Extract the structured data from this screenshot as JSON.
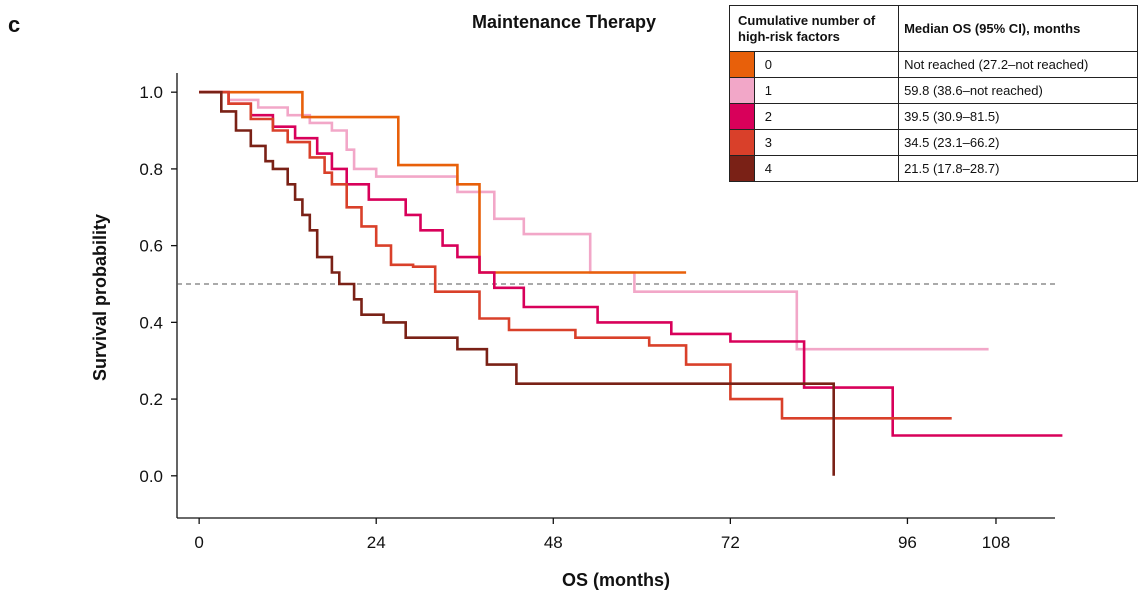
{
  "panel_label": "c",
  "chart_data": {
    "type": "line",
    "title": "Maintenance Therapy",
    "xlabel": "OS (months)",
    "ylabel": "Survival probability",
    "xlim": [
      -3,
      116
    ],
    "ylim": [
      -0.11,
      1.05
    ],
    "xticks": [
      0,
      24,
      48,
      72,
      96,
      108
    ],
    "yticks": [
      0.0,
      0.2,
      0.4,
      0.6,
      0.8,
      1.0
    ],
    "reference_line": {
      "y": 0.5,
      "style": "dashed",
      "color": "#555555"
    },
    "legend": {
      "placement": "top-right",
      "header_group": "Cumulative number of high-risk factors",
      "header_median": "Median OS (95% CI), months"
    },
    "series": [
      {
        "name": "0",
        "median": "Not reached (27.2–not reached)",
        "color": "#E8600A",
        "x": [
          0,
          14,
          14,
          27,
          27,
          35,
          35,
          38,
          38,
          66
        ],
        "y": [
          1.0,
          1.0,
          0.935,
          0.935,
          0.81,
          0.81,
          0.76,
          0.76,
          0.53,
          0.53
        ]
      },
      {
        "name": "1",
        "median": "59.8 (38.6–not reached)",
        "color": "#F2A7C8",
        "x": [
          0,
          4,
          4,
          8,
          8,
          12,
          12,
          15,
          15,
          18,
          18,
          20,
          20,
          21,
          21,
          24,
          24,
          35,
          35,
          40,
          40,
          44,
          44,
          53,
          53,
          59,
          59,
          81,
          81,
          107
        ],
        "y": [
          1.0,
          1.0,
          0.98,
          0.98,
          0.96,
          0.96,
          0.94,
          0.94,
          0.92,
          0.92,
          0.9,
          0.9,
          0.85,
          0.85,
          0.8,
          0.8,
          0.78,
          0.78,
          0.74,
          0.74,
          0.67,
          0.67,
          0.63,
          0.63,
          0.53,
          0.53,
          0.48,
          0.48,
          0.33,
          0.33
        ]
      },
      {
        "name": "2",
        "median": "39.5 (30.9–81.5)",
        "color": "#D8005A",
        "x": [
          0,
          4,
          4,
          7,
          7,
          10,
          10,
          13,
          13,
          16,
          16,
          18,
          18,
          20,
          20,
          23,
          23,
          28,
          28,
          30,
          30,
          33,
          33,
          35,
          35,
          38,
          38,
          40,
          40,
          44,
          44,
          54,
          54,
          64,
          64,
          72,
          72,
          82,
          82,
          94,
          94,
          117
        ],
        "y": [
          1.0,
          1.0,
          0.97,
          0.97,
          0.94,
          0.94,
          0.91,
          0.91,
          0.88,
          0.88,
          0.84,
          0.84,
          0.8,
          0.8,
          0.76,
          0.76,
          0.72,
          0.72,
          0.68,
          0.68,
          0.64,
          0.64,
          0.6,
          0.6,
          0.57,
          0.57,
          0.53,
          0.53,
          0.49,
          0.49,
          0.44,
          0.44,
          0.4,
          0.4,
          0.37,
          0.37,
          0.35,
          0.35,
          0.23,
          0.23,
          0.105,
          0.105
        ]
      },
      {
        "name": "3",
        "median": "34.5 (23.1–66.2)",
        "color": "#D9402A",
        "x": [
          0,
          4,
          4,
          7,
          7,
          10,
          10,
          12,
          12,
          15,
          15,
          17,
          17,
          18,
          18,
          20,
          20,
          22,
          22,
          24,
          24,
          26,
          26,
          29,
          29,
          32,
          32,
          38,
          38,
          42,
          42,
          51,
          51,
          61,
          61,
          66,
          66,
          72,
          72,
          79,
          79,
          82,
          82,
          102
        ],
        "y": [
          1.0,
          1.0,
          0.97,
          0.97,
          0.93,
          0.93,
          0.9,
          0.9,
          0.87,
          0.87,
          0.83,
          0.83,
          0.79,
          0.79,
          0.76,
          0.76,
          0.7,
          0.7,
          0.65,
          0.65,
          0.6,
          0.6,
          0.55,
          0.55,
          0.545,
          0.545,
          0.48,
          0.48,
          0.41,
          0.41,
          0.38,
          0.38,
          0.36,
          0.36,
          0.34,
          0.34,
          0.29,
          0.29,
          0.2,
          0.2,
          0.15,
          0.15,
          0.15,
          0.15
        ]
      },
      {
        "name": "4",
        "median": "21.5 (17.8–28.7)",
        "color": "#7A2116",
        "x": [
          0,
          3,
          3,
          5,
          5,
          7,
          7,
          9,
          9,
          10,
          10,
          12,
          12,
          13,
          13,
          14,
          14,
          15,
          15,
          16,
          16,
          18,
          18,
          19,
          19,
          21,
          21,
          22,
          22,
          25,
          25,
          28,
          28,
          35,
          35,
          39,
          39,
          43,
          43,
          86,
          86
        ],
        "y": [
          1.0,
          1.0,
          0.95,
          0.95,
          0.9,
          0.9,
          0.86,
          0.86,
          0.82,
          0.82,
          0.8,
          0.8,
          0.76,
          0.76,
          0.72,
          0.72,
          0.68,
          0.68,
          0.64,
          0.64,
          0.57,
          0.57,
          0.53,
          0.53,
          0.5,
          0.5,
          0.46,
          0.46,
          0.42,
          0.42,
          0.4,
          0.4,
          0.36,
          0.36,
          0.33,
          0.33,
          0.29,
          0.29,
          0.24,
          0.24,
          0.0
        ]
      }
    ]
  }
}
